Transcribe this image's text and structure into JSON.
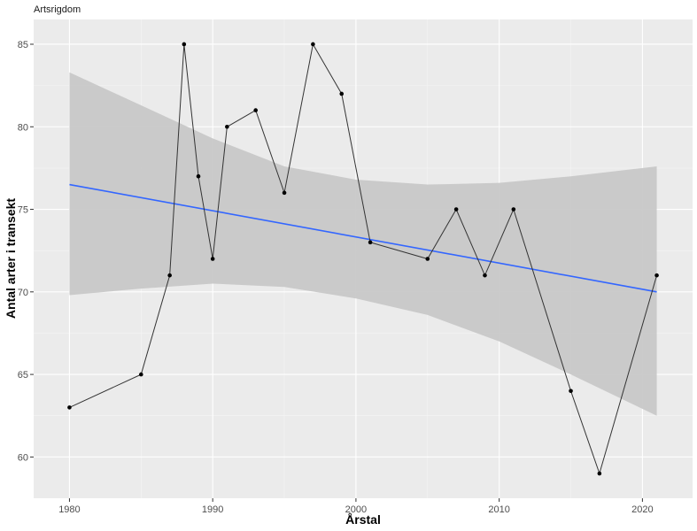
{
  "chart_data": {
    "type": "line",
    "title": "Artsrigdom",
    "xlabel": "Årstal",
    "ylabel": "Antal arter i transekt",
    "xlim": [
      1977.5,
      2023.5
    ],
    "ylim": [
      57.5,
      86.5
    ],
    "xticks": [
      1980,
      1990,
      2000,
      2010,
      2020
    ],
    "yticks": [
      60,
      65,
      70,
      75,
      80,
      85
    ],
    "grid": true,
    "series": [
      {
        "points": [
          [
            1980,
            63
          ],
          [
            1985,
            65
          ],
          [
            1987,
            71
          ],
          [
            1988,
            85
          ],
          [
            1989,
            77
          ],
          [
            1990,
            72
          ],
          [
            1991,
            80
          ],
          [
            1993,
            81
          ],
          [
            1995,
            76
          ],
          [
            1997,
            85
          ],
          [
            1999,
            82
          ],
          [
            2001,
            73
          ],
          [
            2005,
            72
          ],
          [
            2007,
            75
          ],
          [
            2009,
            71
          ],
          [
            2011,
            75
          ],
          [
            2015,
            64
          ],
          [
            2017,
            59
          ],
          [
            2021,
            71
          ]
        ]
      }
    ],
    "trend": {
      "x": [
        1980,
        2021
      ],
      "y": [
        76.5,
        70.0
      ],
      "color": "#3366ff"
    },
    "confidence_band": {
      "x": [
        1980,
        1985,
        1990,
        1995,
        2000,
        2005,
        2010,
        2015,
        2021
      ],
      "lower": [
        69.8,
        70.2,
        70.5,
        70.3,
        69.6,
        68.6,
        67.0,
        65.0,
        62.5
      ],
      "upper": [
        83.3,
        81.3,
        79.3,
        77.6,
        76.8,
        76.5,
        76.6,
        77.0,
        77.6
      ]
    },
    "colors": {
      "panel": "#ebebeb",
      "grid_major": "#ffffff",
      "line": "#333333",
      "point": "#000000",
      "band": "#c8c8c8"
    }
  }
}
